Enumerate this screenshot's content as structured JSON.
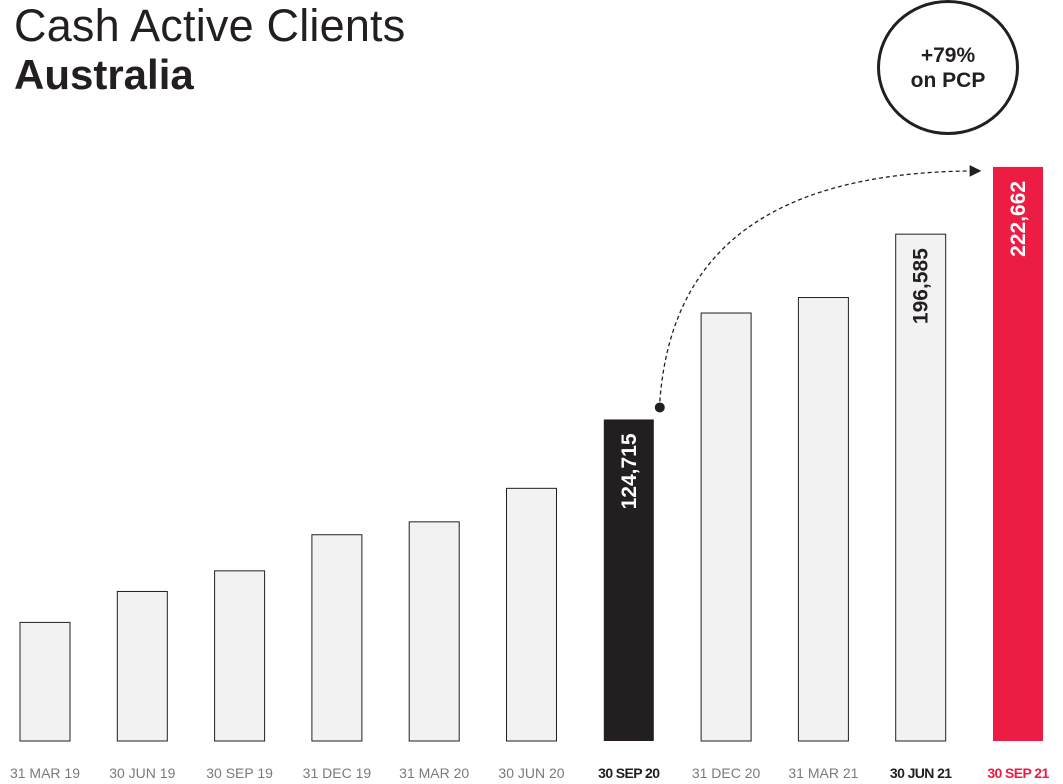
{
  "header": {
    "title": "Cash Active Clients",
    "subtitle": "Australia"
  },
  "callout": {
    "line1": "+79%",
    "line2": "on PCP"
  },
  "colors": {
    "bar_default": "#f2f2f3",
    "bar_outline": "#231f20",
    "bar_highlight_dark": "#231f20",
    "bar_highlight_red": "#ec1c45",
    "label_default": "#7a7a7a",
    "label_dark": "#231f20",
    "label_red": "#ec1c45"
  },
  "chart_data": {
    "type": "bar",
    "title": "Cash Active Clients",
    "subtitle": "Australia",
    "categories": [
      "31 MAR 19",
      "30 JUN 19",
      "30 SEP 19",
      "31 DEC 19",
      "31 MAR 20",
      "30 JUN 20",
      "30 SEP 20",
      "31 DEC 20",
      "31 MAR 21",
      "30 JUN 21",
      "30 SEP 21"
    ],
    "values": [
      46000,
      58000,
      66000,
      80000,
      85000,
      98000,
      124715,
      166000,
      172000,
      196585,
      222662
    ],
    "highlights": [
      "default",
      "default",
      "default",
      "default",
      "default",
      "default",
      "dark",
      "default",
      "default",
      "outlined-bold",
      "red"
    ],
    "data_labels": [
      "",
      "",
      "",
      "",
      "",
      "",
      "124,715",
      "",
      "",
      "196,585",
      "222,662"
    ],
    "ylim": [
      0,
      230000
    ],
    "xlabel": "",
    "ylabel": "",
    "grid": false,
    "annotation": {
      "text": "+79% on PCP",
      "from": "30 SEP 20",
      "to": "30 SEP 21",
      "style": "dashed-arrow"
    }
  }
}
